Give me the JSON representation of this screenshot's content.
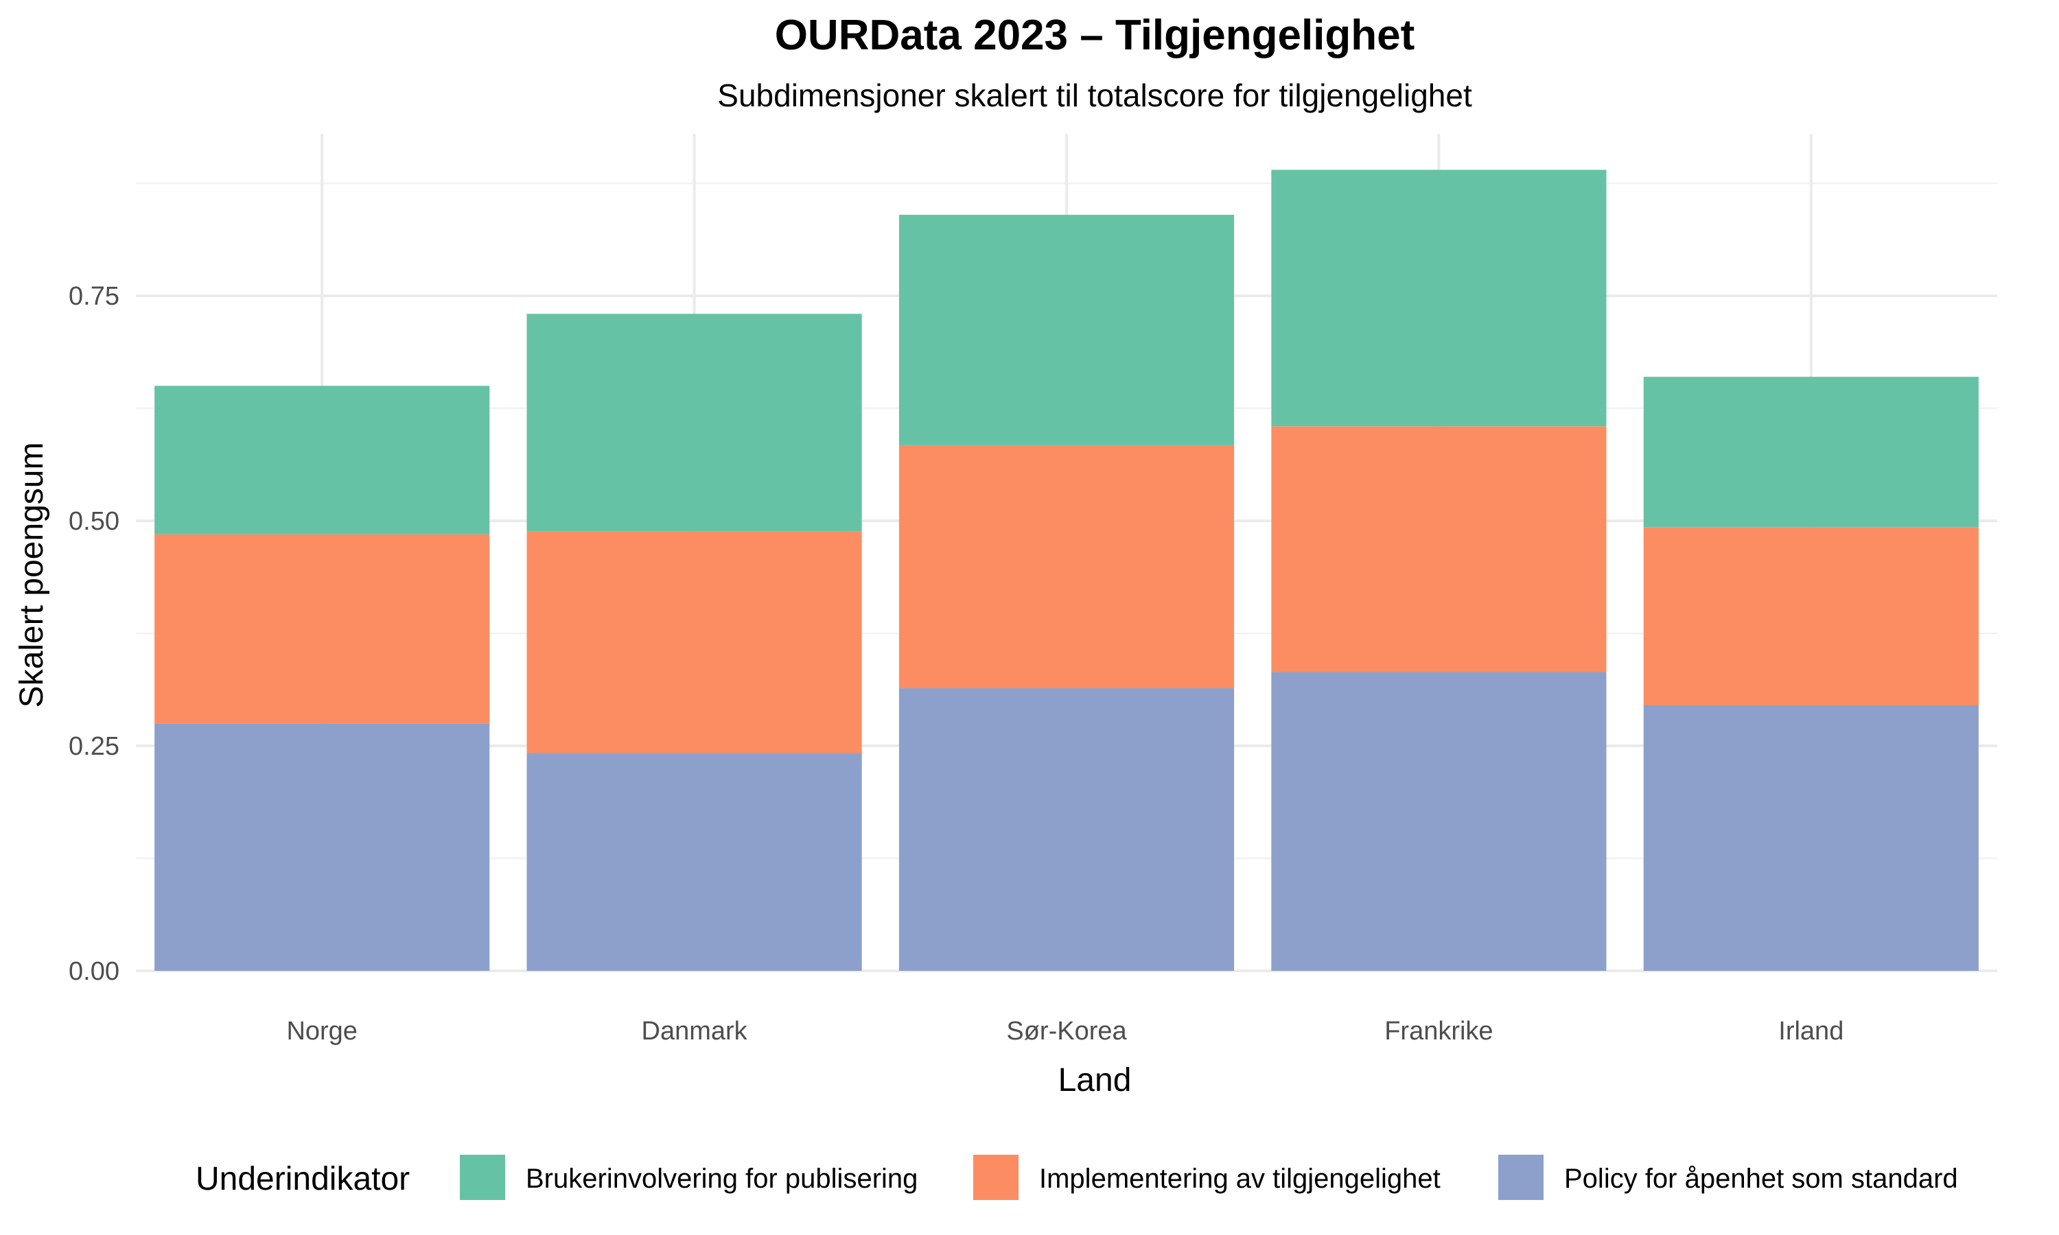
{
  "chart_data": {
    "type": "bar",
    "stacked": true,
    "title": "OURData 2023 – Tilgjengelighet",
    "subtitle": "Subdimensjoner skalert til totalscore for tilgjengelighet",
    "xlabel": "Land",
    "ylabel": "Skalert poengsum",
    "categories": [
      "Norge",
      "Danmark",
      "Sør-Korea",
      "Frankrike",
      "Irland"
    ],
    "ylim": [
      0,
      0.93
    ],
    "yticks": [
      0,
      0.25,
      0.5,
      0.75
    ],
    "ytick_labels": [
      "0.00",
      "0.25",
      "0.50",
      "0.75"
    ],
    "grid": true,
    "legend": {
      "title": "Underindikator",
      "position": "bottom"
    },
    "series": [
      {
        "name": "Policy for åpenhet som standard",
        "color": "#8DA0CB",
        "values": [
          0.275,
          0.242,
          0.314,
          0.332,
          0.295
        ]
      },
      {
        "name": "Implementering av tilgjengelighet",
        "color": "#FC8D62",
        "values": [
          0.21,
          0.246,
          0.27,
          0.273,
          0.198
        ]
      },
      {
        "name": "Brukerinvolvering for publisering",
        "color": "#66C2A5",
        "values": [
          0.165,
          0.242,
          0.256,
          0.285,
          0.167
        ]
      }
    ],
    "legend_order": [
      "Brukerinvolvering for publisering",
      "Implementering av tilgjengelighet",
      "Policy for åpenhet som standard"
    ]
  }
}
